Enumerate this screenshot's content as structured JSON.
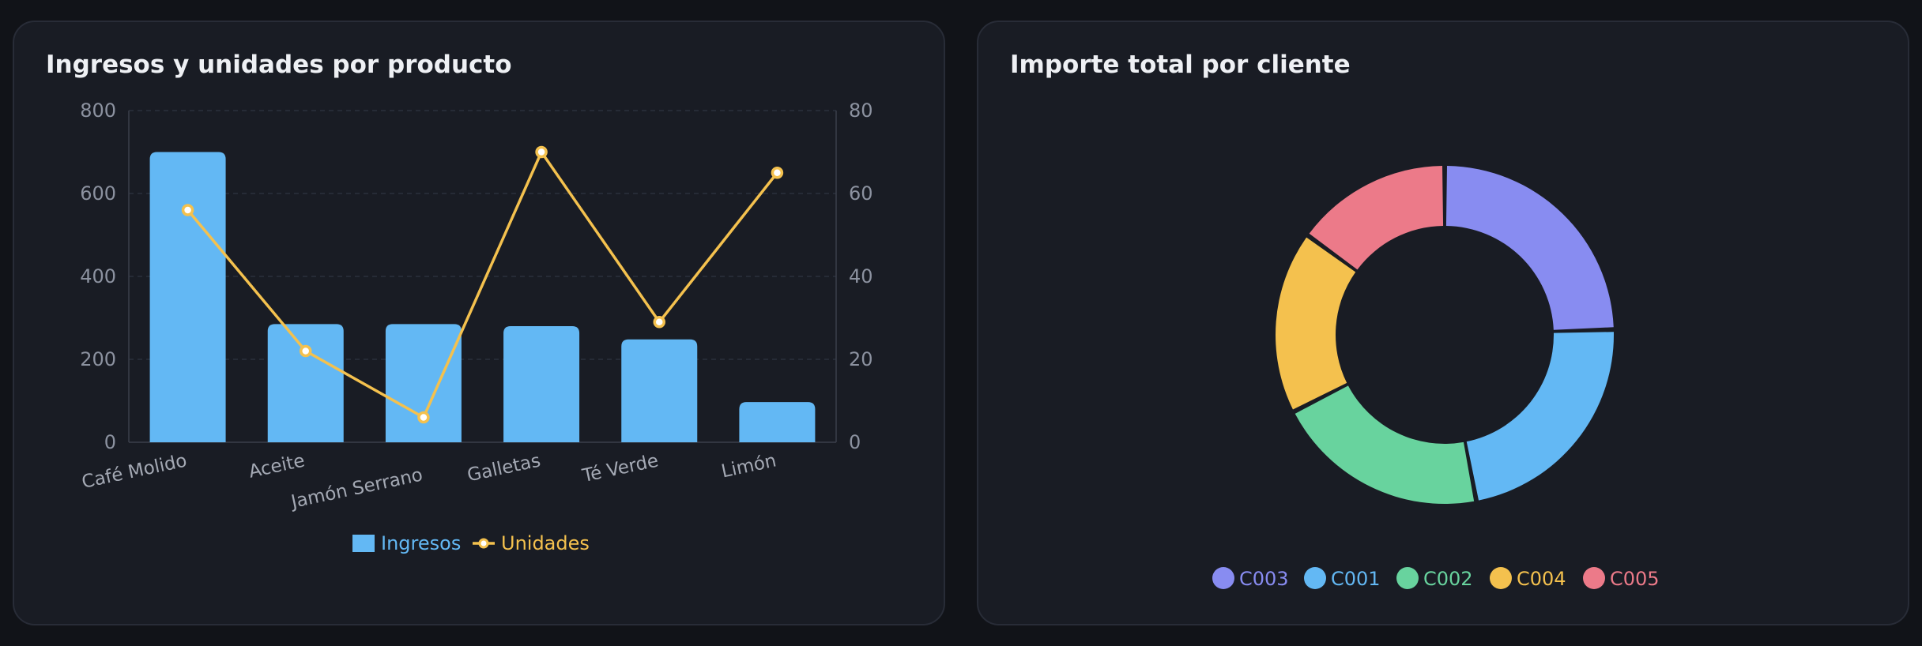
{
  "left_card": {
    "title": "Ingresos y unidades por producto"
  },
  "right_card": {
    "title": "Importe total por cliente"
  },
  "chart_data": [
    {
      "type": "bar",
      "title": "Ingresos y unidades por producto",
      "categories": [
        "Café Molido",
        "Aceite",
        "Jamón Serrano",
        "Galletas",
        "Té Verde",
        "Limón"
      ],
      "series": [
        {
          "name": "Ingresos",
          "type": "bar",
          "axis": "left",
          "color": "#63b8f4",
          "values": [
            700,
            285,
            285,
            280,
            248,
            97
          ]
        },
        {
          "name": "Unidades",
          "type": "line",
          "axis": "right",
          "color": "#f4c14e",
          "values": [
            56,
            22,
            6,
            70,
            29,
            65
          ]
        }
      ],
      "y_left": {
        "lim": [
          0,
          800
        ],
        "ticks": [
          "0",
          "200",
          "400",
          "600",
          "800"
        ]
      },
      "y_right": {
        "lim": [
          0,
          80
        ],
        "ticks": [
          "0",
          "20",
          "40",
          "60",
          "80"
        ]
      },
      "grid": true,
      "legend": "bottom-center"
    },
    {
      "type": "pie",
      "donut": true,
      "title": "Importe total por cliente",
      "labels": [
        "C003",
        "C001",
        "C002",
        "C004",
        "C005"
      ],
      "values": [
        24.5,
        22.5,
        20.5,
        17.5,
        15.0
      ],
      "colors": [
        "#888cf1",
        "#63b8f4",
        "#68d39e",
        "#f4c14e",
        "#ec7a89"
      ],
      "legend": "bottom-center"
    }
  ]
}
